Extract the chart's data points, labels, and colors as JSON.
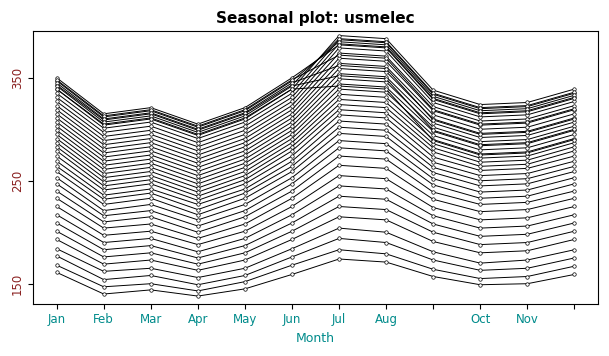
{
  "title": "Seasonal plot: usmelec",
  "xlabel": "Month",
  "ylabel": "",
  "xtick_labels": [
    "Jan",
    "Feb",
    "Mar",
    "Apr",
    "May",
    "Jun",
    "Jul",
    "Aug",
    "",
    "Oct",
    "Nov",
    ""
  ],
  "yticks": [
    150,
    250,
    350
  ],
  "ylim": [
    130,
    395
  ],
  "xlim": [
    0.5,
    12.5
  ],
  "title_color": "#000000",
  "axis_label_color": "#008B8B",
  "yaxis_label_color": "#8B2222",
  "line_color": "#000000",
  "marker": "o",
  "marker_face": "white",
  "marker_size": 2.5,
  "line_width": 0.7,
  "series": [
    [
      161,
      140,
      144,
      138,
      145,
      159,
      174,
      171,
      157,
      149,
      150,
      159
    ],
    [
      168,
      147,
      150,
      143,
      152,
      168,
      183,
      179,
      164,
      155,
      157,
      167
    ],
    [
      177,
      154,
      158,
      149,
      158,
      176,
      194,
      190,
      173,
      163,
      165,
      175
    ],
    [
      184,
      162,
      165,
      156,
      165,
      184,
      204,
      200,
      181,
      170,
      173,
      183
    ],
    [
      193,
      169,
      173,
      163,
      173,
      193,
      215,
      212,
      191,
      180,
      182,
      193
    ],
    [
      201,
      176,
      180,
      169,
      180,
      201,
      225,
      222,
      200,
      188,
      190,
      201
    ],
    [
      209,
      183,
      187,
      175,
      187,
      209,
      235,
      232,
      208,
      196,
      198,
      209
    ],
    [
      217,
      190,
      194,
      181,
      194,
      217,
      245,
      242,
      216,
      204,
      206,
      217
    ],
    [
      225,
      197,
      201,
      188,
      201,
      225,
      255,
      252,
      224,
      212,
      214,
      225
    ],
    [
      233,
      204,
      208,
      194,
      208,
      233,
      265,
      262,
      232,
      220,
      222,
      233
    ],
    [
      240,
      210,
      215,
      200,
      215,
      240,
      274,
      271,
      239,
      227,
      229,
      240
    ],
    [
      247,
      216,
      221,
      206,
      221,
      247,
      282,
      279,
      246,
      233,
      235,
      247
    ],
    [
      253,
      221,
      227,
      212,
      227,
      253,
      289,
      286,
      252,
      239,
      241,
      253
    ],
    [
      259,
      227,
      233,
      217,
      233,
      259,
      296,
      293,
      258,
      245,
      247,
      259
    ],
    [
      264,
      232,
      238,
      222,
      238,
      264,
      302,
      299,
      263,
      250,
      252,
      264
    ],
    [
      269,
      236,
      242,
      227,
      242,
      269,
      308,
      305,
      268,
      255,
      257,
      269
    ],
    [
      274,
      241,
      247,
      231,
      247,
      274,
      314,
      311,
      273,
      260,
      262,
      274
    ],
    [
      279,
      245,
      251,
      235,
      251,
      279,
      319,
      316,
      278,
      264,
      266,
      279
    ],
    [
      283,
      249,
      255,
      239,
      255,
      283,
      324,
      321,
      282,
      268,
      270,
      283
    ],
    [
      287,
      253,
      259,
      243,
      259,
      287,
      329,
      326,
      286,
      272,
      274,
      287
    ],
    [
      291,
      257,
      263,
      247,
      263,
      291,
      334,
      331,
      290,
      276,
      278,
      291
    ],
    [
      295,
      261,
      267,
      251,
      267,
      295,
      339,
      336,
      294,
      280,
      282,
      295
    ],
    [
      299,
      265,
      271,
      255,
      271,
      299,
      344,
      341,
      298,
      284,
      286,
      299
    ],
    [
      303,
      269,
      275,
      259,
      275,
      303,
      349,
      346,
      302,
      288,
      290,
      303
    ],
    [
      307,
      273,
      279,
      263,
      279,
      307,
      354,
      351,
      306,
      292,
      294,
      307
    ],
    [
      311,
      277,
      283,
      267,
      283,
      311,
      359,
      356,
      310,
      296,
      298,
      311
    ],
    [
      315,
      281,
      287,
      271,
      287,
      315,
      364,
      361,
      314,
      300,
      302,
      315
    ],
    [
      319,
      285,
      291,
      275,
      291,
      319,
      369,
      366,
      318,
      304,
      306,
      319
    ],
    [
      323,
      289,
      295,
      279,
      295,
      323,
      374,
      371,
      322,
      308,
      310,
      323
    ],
    [
      327,
      293,
      299,
      283,
      299,
      327,
      379,
      376,
      326,
      312,
      314,
      327
    ],
    [
      331,
      297,
      303,
      287,
      303,
      331,
      383,
      380,
      330,
      316,
      318,
      331
    ],
    [
      335,
      301,
      307,
      291,
      307,
      335,
      387,
      384,
      334,
      320,
      322,
      335
    ],
    [
      339,
      305,
      311,
      295,
      311,
      339,
      391,
      388,
      338,
      324,
      326,
      339
    ],
    [
      343,
      309,
      315,
      299,
      315,
      343,
      388,
      385,
      335,
      321,
      323,
      336
    ],
    [
      347,
      312,
      318,
      302,
      318,
      347,
      385,
      382,
      332,
      318,
      320,
      333
    ],
    [
      350,
      315,
      321,
      305,
      321,
      350,
      382,
      379,
      329,
      315,
      317,
      330
    ],
    [
      348,
      313,
      319,
      303,
      319,
      348,
      372,
      369,
      319,
      305,
      307,
      320
    ],
    [
      345,
      310,
      316,
      300,
      316,
      345,
      362,
      359,
      309,
      295,
      297,
      310
    ],
    [
      342,
      307,
      313,
      297,
      313,
      342,
      352,
      349,
      299,
      285,
      287,
      300
    ],
    [
      339,
      304,
      310,
      294,
      310,
      339,
      342,
      339,
      289,
      275,
      277,
      290
    ]
  ],
  "background_color": "#ffffff",
  "plot_bg_color": "#ffffff"
}
